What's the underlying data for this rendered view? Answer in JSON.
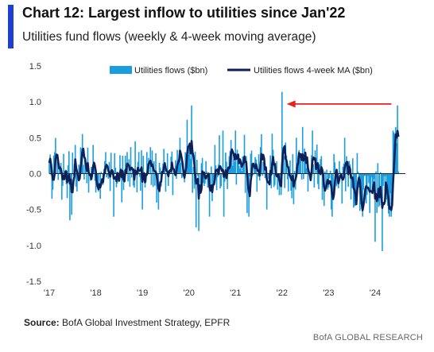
{
  "header": {
    "title": "Chart 12: Largest inflow to utilities since Jan'22",
    "subtitle": "Utilities fund flows (weekly & 4-week moving average)"
  },
  "footer": {
    "source_label": "Source:",
    "source_text": "BofA Global Investment Strategy, EPFR",
    "brand": "BofA GLOBAL RESEARCH"
  },
  "colors": {
    "accent": "#1f3fd0",
    "bars": "#1a9ee0",
    "ma_line": "#0d2059",
    "arrow": "#e8221b",
    "zero_line": "#222222"
  },
  "chart_data": {
    "type": "bar",
    "title": "Chart 12: Largest inflow to utilities since Jan'22",
    "xlabel": "",
    "ylabel": "",
    "ylim": [
      -1.5,
      1.5
    ],
    "yticks": [
      1.5,
      1.0,
      0.5,
      0.0,
      -0.5,
      -1.0,
      -1.5
    ],
    "ytick_labels": [
      "1.5",
      "1.0",
      "0.5",
      "0.0",
      "-0.5",
      "-1.0",
      "-1.5"
    ],
    "xticks": [
      "'17",
      "'18",
      "'19",
      "'20",
      "'21",
      "'22",
      "'23",
      "'24"
    ],
    "xlim_years": [
      2017.0,
      2024.65
    ],
    "legend_position": "top-right",
    "grid": false,
    "series": [
      {
        "name": "Utilities flows ($bn)",
        "kind": "bar",
        "x": [
          2017.05,
          2017.12,
          2017.25,
          2017.45,
          2017.55,
          2017.95,
          2018.05,
          2018.1,
          2018.22,
          2018.38,
          2018.56,
          2018.85,
          2019.0,
          2019.1,
          2019.35,
          2019.65,
          2019.8,
          2019.97,
          2020.05,
          2020.15,
          2020.22,
          2020.45,
          2020.55,
          2020.75,
          2021.0,
          2021.25,
          2021.55,
          2021.68,
          2021.95,
          2022.0,
          2022.06,
          2022.3,
          2022.45,
          2022.55,
          2022.65,
          2022.9,
          2023.05,
          2023.35,
          2023.55,
          2023.88,
          2024.0,
          2024.15,
          2024.3,
          2024.45,
          2024.49
        ],
        "values": [
          -0.35,
          0.3,
          0.15,
          -0.65,
          0.4,
          0.4,
          -0.25,
          -0.35,
          0.3,
          -0.6,
          -0.4,
          0.45,
          -0.5,
          0.3,
          -0.5,
          -0.3,
          0.5,
          0.75,
          0.95,
          -0.75,
          -0.8,
          -0.6,
          0.4,
          -0.6,
          0.6,
          -0.55,
          0.55,
          -0.5,
          -0.3,
          1.14,
          -0.2,
          0.5,
          0.65,
          -0.25,
          0.6,
          -0.45,
          -0.5,
          0.5,
          -0.45,
          -0.55,
          -0.95,
          -1.08,
          -0.6,
          0.65,
          0.95
        ]
      },
      {
        "name": "Utilities flows 4-week MA ($bn)",
        "kind": "line"
      }
    ],
    "annotations": [
      {
        "type": "arrow",
        "from_x": 2024.35,
        "to_x": 2022.1,
        "y": 0.97,
        "color": "red"
      }
    ]
  }
}
